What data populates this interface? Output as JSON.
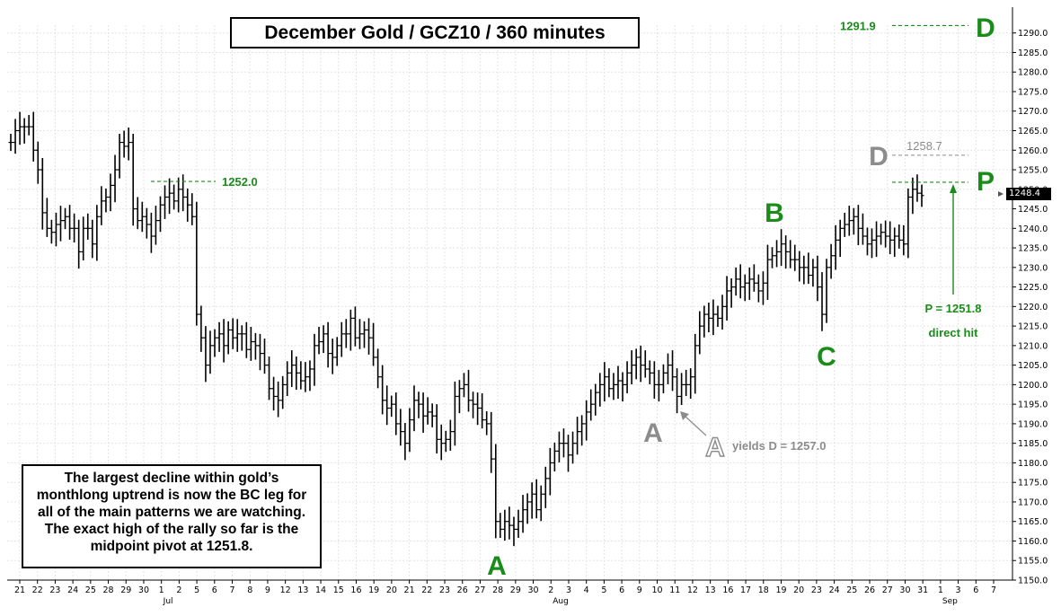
{
  "title": "December Gold  /  GCZ10  /  360 minutes",
  "note": "The largest decline within gold’s monthlong uptrend is now the BC leg for all of the main patterns we are watching.  The exact high of the rally so far is the midpoint pivot at 1251.8.",
  "last_price_label": "1248.4",
  "colors": {
    "green": "#1a8c1a",
    "gray": "#8c8c8c",
    "bars": "#000000",
    "grid": "#e4e4e4"
  },
  "chart_data": {
    "type": "ohlc-bar",
    "ylim": [
      1150,
      1292
    ],
    "y_ticks": [
      "1150.0",
      "1155.0",
      "1160.0",
      "1165.0",
      "1170.0",
      "1175.0",
      "1180.0",
      "1185.0",
      "1190.0",
      "1195.0",
      "1200.0",
      "1205.0",
      "1210.0",
      "1215.0",
      "1220.0",
      "1225.0",
      "1230.0",
      "1235.0",
      "1240.0",
      "1245.0",
      "1250.0",
      "1255.0",
      "1260.0",
      "1265.0",
      "1270.0",
      "1275.0",
      "1280.0",
      "1285.0",
      "1290.0"
    ],
    "x_ticks": [
      "21",
      "22",
      "23",
      "24",
      "25",
      "28",
      "29",
      "30",
      "1",
      "2",
      "5",
      "6",
      "7",
      "8",
      "9",
      "12",
      "13",
      "14",
      "15",
      "16",
      "19",
      "20",
      "21",
      "22",
      "23",
      "26",
      "27",
      "28",
      "29",
      "30",
      "2",
      "3",
      "4",
      "5",
      "6",
      "9",
      "10",
      "11",
      "12",
      "13",
      "16",
      "17",
      "18",
      "19",
      "20",
      "23",
      "24",
      "25",
      "26",
      "27",
      "30",
      "31",
      "1",
      "3",
      "6",
      "7"
    ],
    "month_labels": [
      "Jul",
      "Aug",
      "Sep"
    ],
    "series": [
      {
        "values": [
          1262,
          1265,
          1266,
          1266,
          1266,
          1260,
          1255,
          1244,
          1240,
          1239,
          1241,
          1242,
          1243,
          1240,
          1240,
          1234,
          1240,
          1240,
          1236,
          1243,
          1247,
          1248,
          1251,
          1255,
          1262,
          1261,
          1262,
          1245,
          1242,
          1243,
          1241,
          1238,
          1242,
          1246,
          1248,
          1249,
          1247,
          1250,
          1248,
          1246,
          1243,
          1218,
          1212,
          1205,
          1210,
          1212,
          1213,
          1210,
          1214,
          1212,
          1213,
          1213,
          1209,
          1211,
          1210,
          1208,
          1205,
          1199,
          1197,
          1196,
          1200,
          1203,
          1205,
          1203,
          1201,
          1202,
          1204,
          1210,
          1211,
          1213,
          1208,
          1207,
          1210,
          1213,
          1213,
          1217,
          1212,
          1213,
          1214,
          1212,
          1207,
          1202,
          1196,
          1194,
          1195,
          1190,
          1188,
          1185,
          1191,
          1196,
          1195,
          1192,
          1193,
          1192,
          1186,
          1185,
          1186,
          1188,
          1197,
          1199,
          1200,
          1196,
          1195,
          1194,
          1191,
          1190,
          1181,
          1165,
          1163,
          1165,
          1164,
          1163,
          1165,
          1168,
          1170,
          1172,
          1168,
          1172,
          1176,
          1180,
          1183,
          1185,
          1185,
          1182,
          1185,
          1188,
          1190,
          1193,
          1195,
          1198,
          1200,
          1202,
          1199,
          1200,
          1201,
          1200,
          1203,
          1205,
          1207,
          1205,
          1204,
          1203,
          1200,
          1200,
          1203,
          1205,
          1202,
          1197,
          1200,
          1200,
          1202,
          1210,
          1215,
          1218,
          1217,
          1218,
          1217,
          1220,
          1224,
          1225,
          1227,
          1225,
          1226,
          1227,
          1226,
          1224,
          1226,
          1232,
          1233,
          1234,
          1236,
          1234,
          1232,
          1232,
          1230,
          1230,
          1228,
          1230,
          1225,
          1218,
          1230,
          1233,
          1237,
          1240,
          1241,
          1242,
          1243,
          1240,
          1238,
          1236,
          1237,
          1238,
          1239,
          1238,
          1237,
          1238,
          1237,
          1236,
          1248,
          1250,
          1249,
          1248.4
        ]
      }
    ],
    "swing_labels": [
      {
        "label": "A",
        "value": 1160.0
      },
      {
        "label": "B",
        "value": 1239.8
      },
      {
        "label": "C",
        "value": 1212.0
      },
      {
        "label": "A",
        "value": 1193.0
      }
    ],
    "levels": [
      {
        "label": "D",
        "value": 1291.9,
        "text": "1291.9"
      },
      {
        "label": "D",
        "value": 1258.7,
        "text": "1258.7"
      },
      {
        "label": "P",
        "value": 1251.8
      },
      {
        "value": 1252.0,
        "text": "1252.0"
      }
    ],
    "annotations": [
      {
        "text": "P = 1251.8",
        "text2": "direct hit"
      },
      {
        "label": "A",
        "text": "yields D = 1257.0"
      }
    ]
  }
}
